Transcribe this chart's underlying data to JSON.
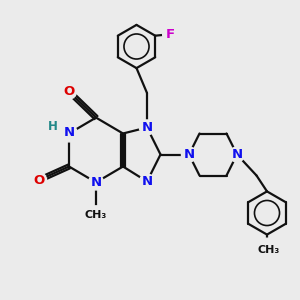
{
  "background_color": "#ebebeb",
  "bond_color": "#111111",
  "bond_width": 1.6,
  "atom_colors": {
    "N": "#1010ee",
    "O": "#dd0000",
    "H": "#228888",
    "F": "#cc00cc",
    "C": "#111111"
  },
  "font_size_atom": 9.5,
  "font_size_small": 8.0,
  "bg_circle_r": 0.18
}
